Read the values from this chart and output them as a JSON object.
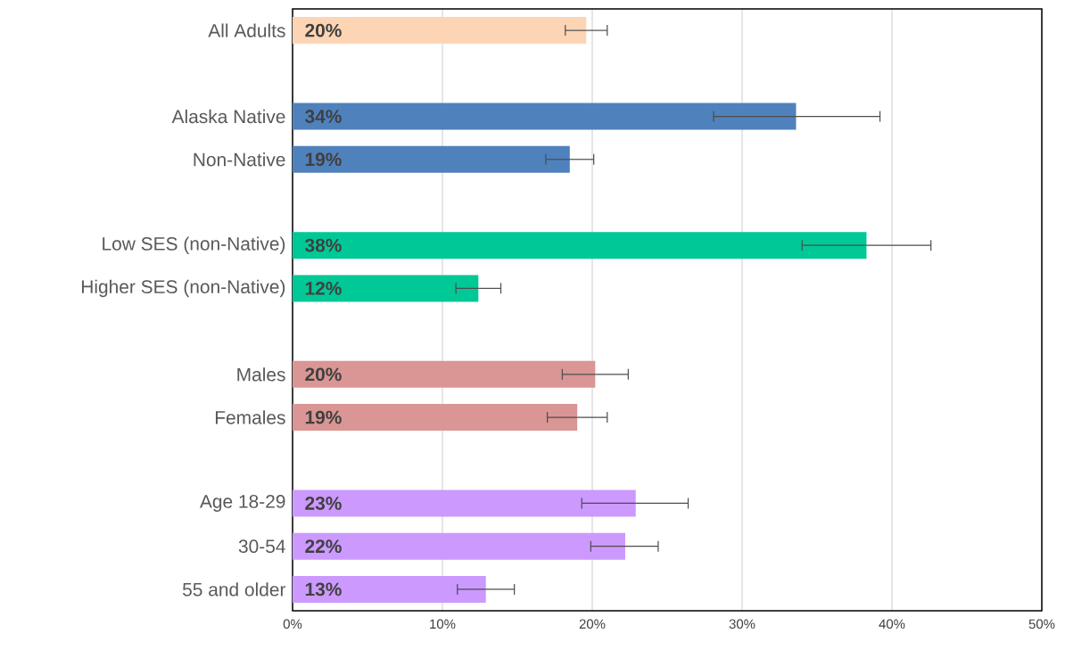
{
  "chart_data": {
    "type": "bar",
    "orientation": "horizontal",
    "categories": [
      "All Adults",
      null,
      "Alaska Native",
      "Non-Native",
      null,
      "Low SES (non-Native)",
      "Higher SES (non-Native)",
      null,
      "Males",
      "Females",
      null,
      "Age 18-29",
      "30-54",
      "55 and older"
    ],
    "values": [
      19.6,
      null,
      33.6,
      18.5,
      null,
      38.3,
      12.4,
      null,
      20.2,
      19.0,
      null,
      22.9,
      22.2,
      12.9
    ],
    "errors": [
      [
        18.2,
        21.0
      ],
      null,
      [
        28.1,
        39.2
      ],
      [
        16.9,
        20.1
      ],
      null,
      [
        34.0,
        42.6
      ],
      [
        10.9,
        13.9
      ],
      null,
      [
        18.0,
        22.4
      ],
      [
        17.0,
        21.0
      ],
      null,
      [
        19.3,
        26.4
      ],
      [
        19.9,
        24.4
      ],
      [
        11.0,
        14.8
      ]
    ],
    "colors": [
      "#fdd5b5",
      null,
      "#4f81bd",
      "#4f81bd",
      null,
      "#00c896",
      "#00c896",
      null,
      "#d99694",
      "#d99694",
      null,
      "#cc99ff",
      "#cc99ff",
      "#cc99ff"
    ],
    "value_labels": [
      "20%",
      null,
      "34%",
      "19%",
      null,
      "38%",
      "12%",
      null,
      "20%",
      "19%",
      null,
      "23%",
      "22%",
      "13%"
    ],
    "xlim": [
      0,
      50
    ],
    "xticks": [
      {
        "value": 0,
        "label": "0%"
      },
      {
        "value": 10,
        "label": "10%"
      },
      {
        "value": 20,
        "label": "20%"
      },
      {
        "value": 30,
        "label": "30%"
      },
      {
        "value": 40,
        "label": "40%"
      },
      {
        "value": 50,
        "label": "50%"
      }
    ],
    "grid": "x"
  }
}
